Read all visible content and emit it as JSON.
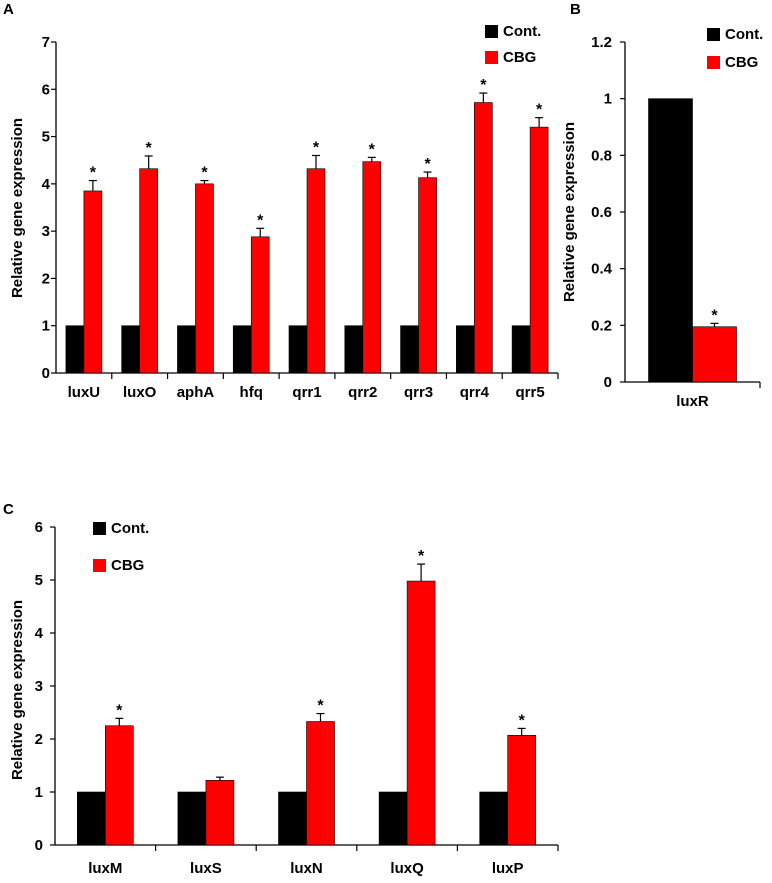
{
  "chart_data": [
    {
      "panel": "A",
      "type": "bar",
      "ylabel": "Relative gene expression",
      "ylim": [
        0,
        7
      ],
      "yticks": [
        0,
        1,
        2,
        3,
        4,
        5,
        6,
        7
      ],
      "categories": [
        "luxU",
        "luxO",
        "aphA",
        "hfq",
        "qrr1",
        "qrr2",
        "qrr3",
        "qrr4",
        "qrr5"
      ],
      "series": [
        {
          "name": "Cont.",
          "color": "#000000",
          "values": [
            1,
            1,
            1,
            1,
            1,
            1,
            1,
            1,
            1
          ]
        },
        {
          "name": "CBG",
          "color": "#ff0000",
          "values": [
            3.85,
            4.32,
            4.0,
            2.88,
            4.32,
            4.47,
            4.13,
            5.72,
            5.2
          ],
          "errors": [
            0.22,
            0.27,
            0.07,
            0.18,
            0.28,
            0.09,
            0.12,
            0.2,
            0.2
          ],
          "significance": [
            "*",
            "*",
            "*",
            "*",
            "*",
            "*",
            "*",
            "*",
            "*"
          ]
        }
      ],
      "legend": "top-right"
    },
    {
      "panel": "B",
      "type": "bar",
      "ylabel": "Relative gene expression",
      "ylim": [
        0,
        1.2
      ],
      "yticks": [
        0,
        0.2,
        0.4,
        0.6,
        0.8,
        1,
        1.2
      ],
      "categories": [
        "luxR"
      ],
      "series": [
        {
          "name": "Cont.",
          "color": "#000000",
          "values": [
            1
          ]
        },
        {
          "name": "CBG",
          "color": "#ff0000",
          "values": [
            0.195
          ],
          "errors": [
            0.012
          ],
          "significance": [
            "*"
          ]
        }
      ],
      "legend": "top-right"
    },
    {
      "panel": "C",
      "type": "bar",
      "ylabel": "Relative gene expression",
      "ylim": [
        0,
        6
      ],
      "yticks": [
        0,
        1,
        2,
        3,
        4,
        5,
        6
      ],
      "categories": [
        "luxM",
        "luxS",
        "luxN",
        "luxQ",
        "luxP"
      ],
      "series": [
        {
          "name": "Cont.",
          "color": "#000000",
          "values": [
            1,
            1,
            1,
            1,
            1
          ]
        },
        {
          "name": "CBG",
          "color": "#ff0000",
          "values": [
            2.25,
            1.22,
            2.33,
            4.98,
            2.07
          ],
          "errors": [
            0.14,
            0.06,
            0.15,
            0.32,
            0.13
          ],
          "significance": [
            "*",
            "",
            "*",
            "*",
            "*"
          ]
        }
      ],
      "legend": "top-left"
    }
  ]
}
